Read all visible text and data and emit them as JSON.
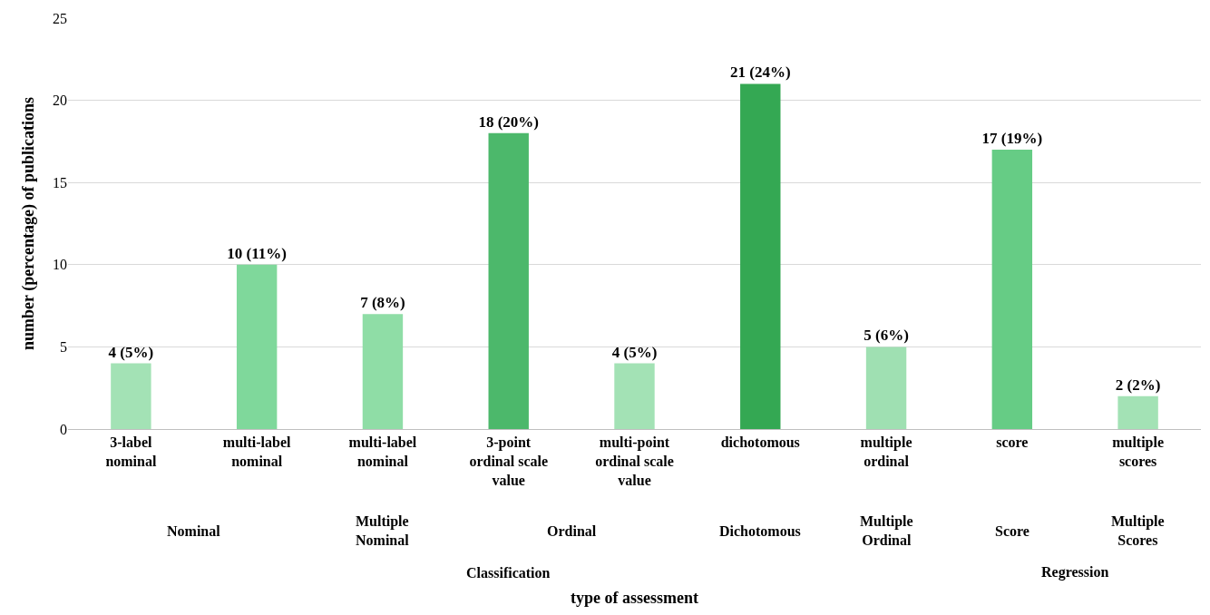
{
  "chart_data": {
    "type": "bar",
    "ylabel": "number (percentage) of publications",
    "categories": [
      "3-label nominal",
      "multi-label nominal",
      "multi-label nominal",
      "3-point ordinal scale value",
      "multi-point ordinal scale value",
      "dichotomous",
      "multiple ordinal",
      "score",
      "multiple scores"
    ],
    "values": [
      4,
      10,
      7,
      18,
      4,
      21,
      5,
      17,
      2
    ],
    "colors": [
      "#a3e2b5",
      "#7fd89b",
      "#8fdda6",
      "#4cb86b",
      "#a3e2b5",
      "#34a853",
      "#9fe0b2",
      "#66cc85",
      "#a3e2b5"
    ],
    "value_labels": [
      "4 (5%)",
      "10 (11%)",
      "7 (8%)",
      "18 (20%)",
      "4 (5%)",
      "21 (24%)",
      "5 (6%)",
      "17 (19%)",
      "2 (2%)"
    ],
    "annotations": [
      "Nominal",
      "Multiple Nominal",
      "Ordinal",
      "Dichotomous",
      "Multiple Ordinal",
      "Score",
      "Multiple Scores",
      "Classification",
      "Regression",
      "type of assessment"
    ],
    "ylim": [
      0,
      25
    ],
    "yticks": [
      0,
      5,
      10,
      15,
      20,
      25
    ],
    "grid": "y"
  }
}
